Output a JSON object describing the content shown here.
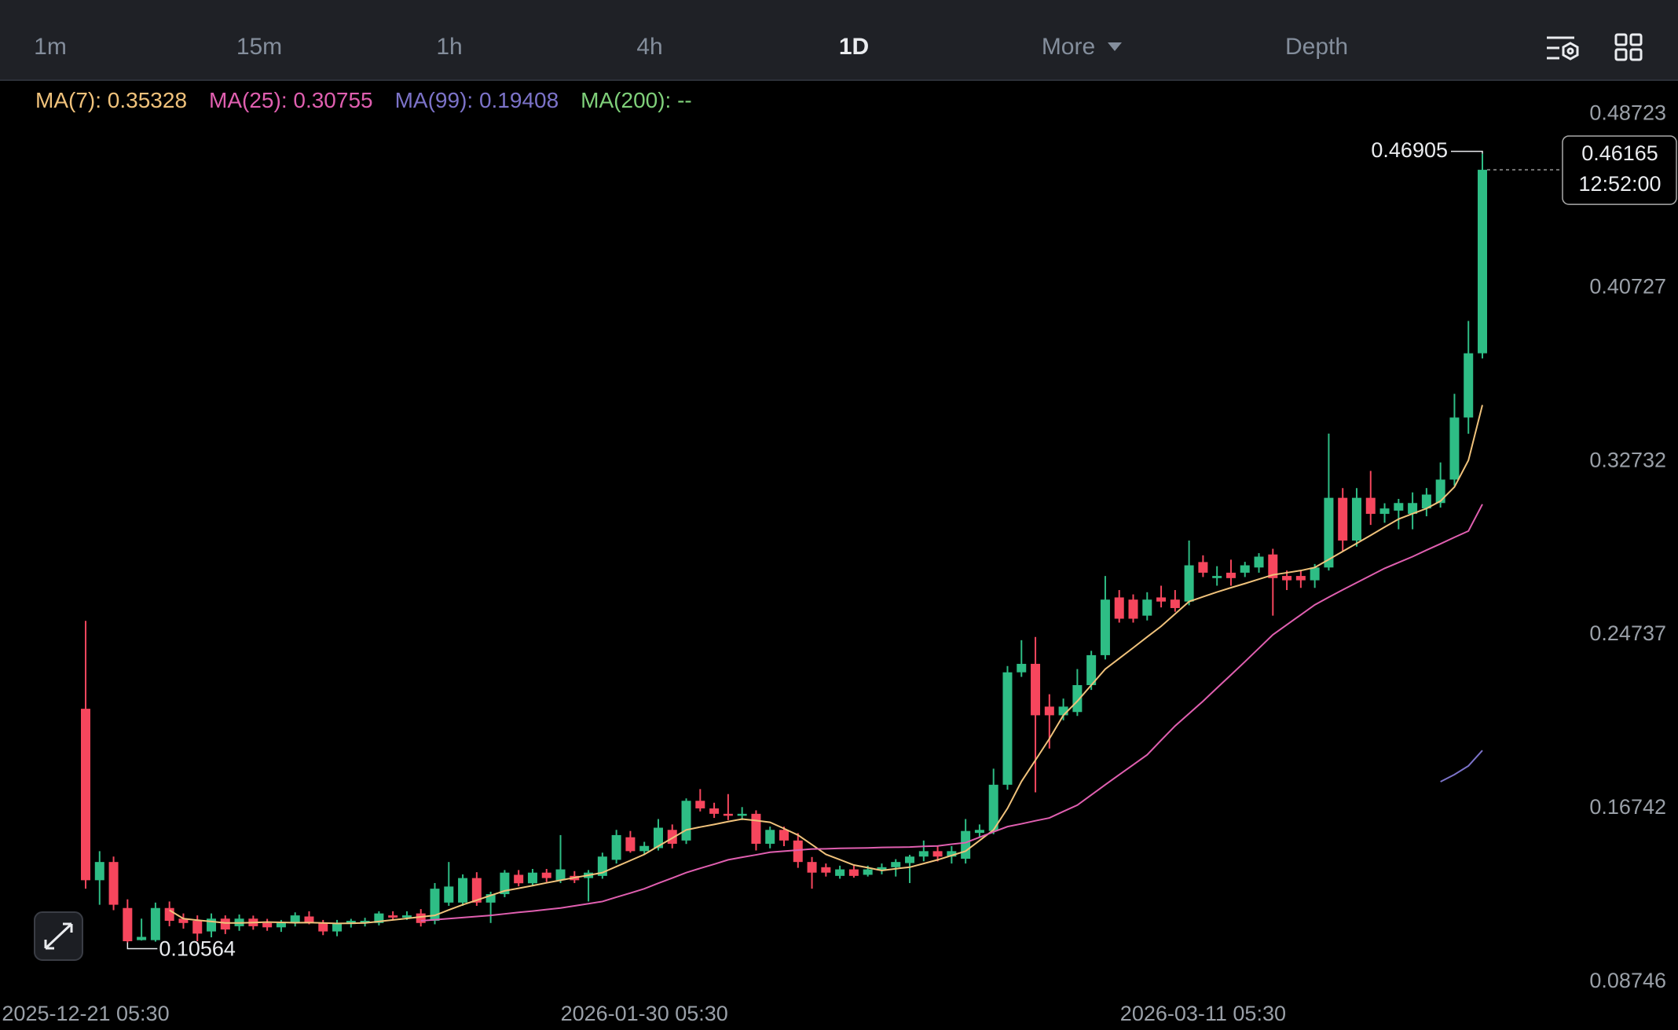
{
  "toolbar": {
    "tabs": [
      "1m",
      "15m",
      "1h",
      "4h",
      "1D",
      "More",
      "Depth"
    ],
    "active": "1D"
  },
  "chart_data": {
    "type": "candlestick",
    "categories": [
      "2025-12-21 05:30",
      null,
      null,
      null,
      null,
      null,
      null,
      null,
      null,
      null,
      null,
      null,
      null,
      null,
      null,
      null,
      null,
      null,
      null,
      null,
      null,
      null,
      null,
      null,
      null,
      null,
      null,
      null,
      null,
      null,
      null,
      null,
      null,
      null,
      null,
      null,
      null,
      null,
      null,
      null,
      "2026-01-30 05:30",
      null,
      null,
      null,
      null,
      null,
      null,
      null,
      null,
      null,
      null,
      null,
      null,
      null,
      null,
      null,
      null,
      null,
      null,
      null,
      null,
      null,
      null,
      null,
      null,
      null,
      null,
      null,
      null,
      null,
      null,
      null,
      null,
      null,
      null,
      null,
      null,
      null,
      null,
      null,
      "2026-03-11 05:30",
      null,
      null,
      null,
      null,
      null,
      null,
      null,
      null,
      null,
      null,
      null,
      null,
      null,
      null,
      null,
      null,
      null,
      null,
      null,
      null
    ],
    "open": [
      0.2133,
      0.1343,
      0.1427,
      0.1215,
      0.1067,
      0.1067,
      0.1215,
      0.1166,
      0.1156,
      0.1107,
      0.1166,
      0.1131,
      0.1166,
      0.1146,
      0.1126,
      0.1146,
      0.1176,
      0.1146,
      0.1107,
      0.1141,
      0.1146,
      0.1146,
      0.1181,
      0.1171,
      0.119,
      0.1156,
      0.124,
      0.124,
      0.1353,
      0.124,
      0.1279,
      0.1368,
      0.1329,
      0.1378,
      0.1343,
      0.1363,
      0.1353,
      0.1363,
      0.1437,
      0.1541,
      0.1477,
      0.1491,
      0.1575,
      0.1526,
      0.1709,
      0.1674,
      0.1649,
      0.164,
      0.1649,
      0.1511,
      0.1575,
      0.1526,
      0.1427,
      0.1403,
      0.1363,
      0.1393,
      0.1368,
      0.1388,
      0.1403,
      0.1422,
      0.1452,
      0.1477,
      0.1452,
      0.1442,
      0.1561,
      0.157,
      0.1783,
      0.2301,
      0.234,
      0.2143,
      0.2103,
      0.2118,
      0.2242,
      0.238,
      0.2646,
      0.2636,
      0.2562,
      0.2646,
      0.2636,
      0.2627,
      0.2809,
      0.2735,
      0.276,
      0.276,
      0.2784,
      0.2844,
      0.2745,
      0.2745,
      0.2725,
      0.2784,
      0.3105,
      0.2908,
      0.3105,
      0.3031,
      0.3046,
      0.3031,
      0.3056,
      0.3081,
      0.3189,
      0.3475,
      0.3771
    ],
    "high": [
      0.2538,
      0.1477,
      0.1452,
      0.1255,
      0.1166,
      0.124,
      0.1245,
      0.119,
      0.1181,
      0.119,
      0.1181,
      0.1185,
      0.118,
      0.1165,
      0.116,
      0.1195,
      0.12,
      0.116,
      0.116,
      0.1165,
      0.117,
      0.12,
      0.12,
      0.12,
      0.121,
      0.133,
      0.1427,
      0.137,
      0.138,
      0.129,
      0.139,
      0.139,
      0.1395,
      0.1395,
      0.1551,
      0.1385,
      0.139,
      0.147,
      0.1575,
      0.157,
      0.152,
      0.1625,
      0.16,
      0.172,
      0.1763,
      0.17,
      0.174,
      0.168,
      0.1665,
      0.159,
      0.159,
      0.156,
      0.145,
      0.142,
      0.141,
      0.141,
      0.141,
      0.142,
      0.144,
      0.146,
      0.1526,
      0.15,
      0.15,
      0.1625,
      0.16,
      0.1857,
      0.233,
      0.2449,
      0.2464,
      0.22,
      0.218,
      0.2316,
      0.24,
      0.2745,
      0.268,
      0.266,
      0.267,
      0.27,
      0.268,
      0.2908,
      0.284,
      0.279,
      0.282,
      0.281,
      0.285,
      0.287,
      0.277,
      0.277,
      0.28,
      0.3401,
      0.315,
      0.315,
      0.3229,
      0.308,
      0.31,
      0.313,
      0.315,
      0.3268,
      0.3584,
      0.392,
      0.46905
    ],
    "low": [
      0.1304,
      0.123,
      0.1205,
      0.10564,
      0.1065,
      0.106,
      0.1131,
      0.112,
      0.1062,
      0.108,
      0.1095,
      0.111,
      0.1115,
      0.111,
      0.1105,
      0.113,
      0.114,
      0.109,
      0.1085,
      0.1125,
      0.113,
      0.1135,
      0.116,
      0.116,
      0.113,
      0.114,
      0.1225,
      0.1225,
      0.1225,
      0.1146,
      0.1265,
      0.1315,
      0.1315,
      0.1335,
      0.133,
      0.133,
      0.1245,
      0.135,
      0.142,
      0.147,
      0.146,
      0.148,
      0.149,
      0.151,
      0.166,
      0.163,
      0.162,
      0.162,
      0.148,
      0.149,
      0.15,
      0.14,
      0.1304,
      0.136,
      0.135,
      0.1355,
      0.136,
      0.137,
      0.136,
      0.133,
      0.143,
      0.143,
      0.142,
      0.142,
      0.154,
      0.1555,
      0.176,
      0.228,
      0.1748,
      0.195,
      0.208,
      0.21,
      0.222,
      0.236,
      0.253,
      0.253,
      0.254,
      0.26,
      0.258,
      0.261,
      0.274,
      0.27,
      0.27,
      0.274,
      0.276,
      0.2562,
      0.268,
      0.269,
      0.269,
      0.277,
      0.286,
      0.288,
      0.298,
      0.299,
      0.296,
      0.296,
      0.302,
      0.306,
      0.316,
      0.34,
      0.3747
    ],
    "close": [
      0.1343,
      0.1427,
      0.123,
      0.1062,
      0.1082,
      0.1215,
      0.1156,
      0.1146,
      0.1097,
      0.1166,
      0.1116,
      0.1166,
      0.1131,
      0.1126,
      0.1146,
      0.1181,
      0.1146,
      0.1107,
      0.1146,
      0.1156,
      0.1156,
      0.119,
      0.1171,
      0.1181,
      0.1146,
      0.1304,
      0.1314,
      0.1353,
      0.124,
      0.1279,
      0.1378,
      0.1329,
      0.1378,
      0.1353,
      0.1393,
      0.1343,
      0.1378,
      0.1452,
      0.1551,
      0.1477,
      0.1501,
      0.1585,
      0.1511,
      0.1709,
      0.1674,
      0.1649,
      0.164,
      0.1649,
      0.1511,
      0.1575,
      0.1526,
      0.1427,
      0.1378,
      0.1378,
      0.1393,
      0.1363,
      0.1393,
      0.1403,
      0.1427,
      0.1452,
      0.1477,
      0.1452,
      0.1477,
      0.157,
      0.1575,
      0.1783,
      0.2301,
      0.234,
      0.2103,
      0.2103,
      0.2143,
      0.2242,
      0.238,
      0.2636,
      0.2548,
      0.2548,
      0.2636,
      0.2627,
      0.2597,
      0.2794,
      0.276,
      0.2745,
      0.2735,
      0.2794,
      0.2834,
      0.2735,
      0.2725,
      0.2725,
      0.2784,
      0.3105,
      0.2908,
      0.3105,
      0.3031,
      0.3056,
      0.3081,
      0.3081,
      0.312,
      0.3189,
      0.3475,
      0.3771,
      0.46165
    ],
    "up_color": "#2ebd85",
    "down_color": "#f6465d",
    "series": [
      {
        "name": "MA(7)",
        "color": "#f0c27b",
        "values": [
          null,
          null,
          null,
          null,
          null,
          null,
          0.1205,
          0.1166,
          0.1159,
          0.1153,
          0.1146,
          0.1146,
          0.1148,
          0.115,
          0.1149,
          0.1147,
          0.1148,
          0.1146,
          0.1144,
          0.1145,
          0.1146,
          0.1153,
          0.116,
          0.1167,
          0.1174,
          0.1181,
          0.1206,
          0.123,
          0.1251,
          0.1273,
          0.1294,
          0.1306,
          0.1318,
          0.1331,
          0.1343,
          0.1355,
          0.1366,
          0.1378,
          0.1406,
          0.1434,
          0.1462,
          0.15,
          0.1537,
          0.1575,
          0.1588,
          0.16,
          0.1613,
          0.1625,
          0.1618,
          0.161,
          0.1581,
          0.1551,
          0.1507,
          0.1462,
          0.1438,
          0.1413,
          0.1401,
          0.1388,
          0.1396,
          0.1403,
          0.142,
          0.1437,
          0.1457,
          0.1477,
          0.1526,
          0.1575,
          0.1674,
          0.1798,
          0.1896,
          0.1995,
          0.2103,
          0.2168,
          0.2242,
          0.2316,
          0.2365,
          0.2414,
          0.2464,
          0.2513,
          0.257,
          0.2627,
          0.2649,
          0.2671,
          0.2691,
          0.271,
          0.273,
          0.275,
          0.276,
          0.277,
          0.2784,
          0.2821,
          0.2858,
          0.2895,
          0.2932,
          0.297,
          0.3007,
          0.3032,
          0.3056,
          0.309,
          0.3155,
          0.3278,
          0.35328
        ]
      },
      {
        "name": "MA(25)",
        "color": "#e05fb0",
        "values": [
          null,
          null,
          null,
          null,
          null,
          null,
          null,
          null,
          null,
          null,
          null,
          null,
          null,
          null,
          null,
          null,
          null,
          null,
          null,
          null,
          null,
          null,
          null,
          null,
          0.1156,
          0.1161,
          0.1166,
          0.1171,
          0.1176,
          0.1181,
          0.1188,
          0.1195,
          0.1201,
          0.1208,
          0.1215,
          0.1225,
          0.1235,
          0.1245,
          0.1265,
          0.1284,
          0.1304,
          0.1329,
          0.1353,
          0.1378,
          0.1398,
          0.1417,
          0.1437,
          0.1449,
          0.146,
          0.1472,
          0.1477,
          0.1482,
          0.1487,
          0.1488,
          0.149,
          0.1491,
          0.1492,
          0.1494,
          0.1495,
          0.1496,
          0.1499,
          0.1501,
          0.1509,
          0.1516,
          0.1541,
          0.1566,
          0.159,
          0.1603,
          0.1617,
          0.163,
          0.166,
          0.1689,
          0.1736,
          0.1783,
          0.1829,
          0.1875,
          0.1921,
          0.1988,
          0.2054,
          0.2111,
          0.2168,
          0.2229,
          0.2289,
          0.235,
          0.2412,
          0.2474,
          0.252,
          0.2566,
          0.2612,
          0.2647,
          0.2681,
          0.2714,
          0.2747,
          0.278,
          0.2807,
          0.2834,
          0.2864,
          0.2893,
          0.2923,
          0.2952,
          0.30755
        ]
      },
      {
        "name": "MA(99)",
        "color": "#7c73c9",
        "values": [
          null,
          null,
          null,
          null,
          null,
          null,
          null,
          null,
          null,
          null,
          null,
          null,
          null,
          null,
          null,
          null,
          null,
          null,
          null,
          null,
          null,
          null,
          null,
          null,
          null,
          null,
          null,
          null,
          null,
          null,
          null,
          null,
          null,
          null,
          null,
          null,
          null,
          null,
          null,
          null,
          null,
          null,
          null,
          null,
          null,
          null,
          null,
          null,
          null,
          null,
          null,
          null,
          null,
          null,
          null,
          null,
          null,
          null,
          null,
          null,
          null,
          null,
          null,
          null,
          null,
          null,
          null,
          null,
          null,
          null,
          null,
          null,
          null,
          null,
          null,
          null,
          null,
          null,
          null,
          null,
          null,
          null,
          null,
          null,
          null,
          null,
          null,
          null,
          null,
          null,
          null,
          null,
          null,
          null,
          null,
          null,
          null,
          0.1797,
          0.183,
          0.187,
          0.19408
        ]
      },
      {
        "name": "MA(200)",
        "color": "#7fd07a",
        "value_label": "--"
      }
    ],
    "ylim": [
      0.0776,
      0.5015
    ],
    "yticks": [
      0.08746,
      0.16742,
      0.24737,
      0.32732,
      0.40727,
      0.48723
    ],
    "grid": false,
    "countdown": "12:52:00"
  }
}
